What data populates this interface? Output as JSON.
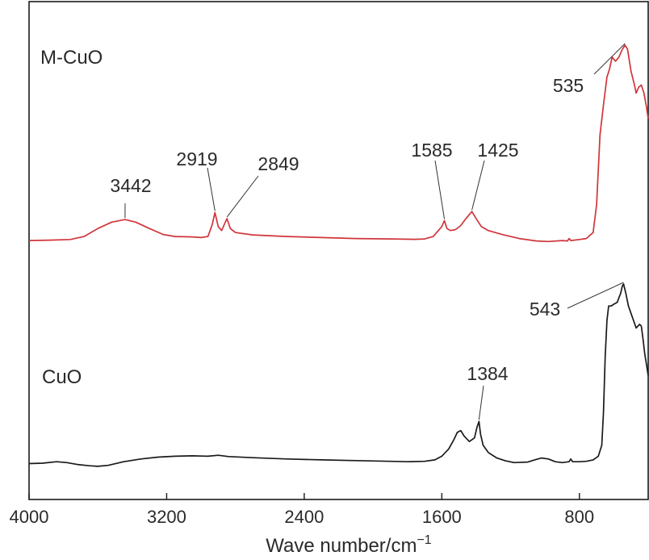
{
  "chart_data": {
    "type": "line",
    "title": "",
    "xlabel": "Wave number/cm",
    "xlabel_sup": "−1",
    "ylabel": "",
    "xlim": [
      4000,
      400
    ],
    "x_reversed": true,
    "x_ticks": [
      4000,
      3200,
      2400,
      1600,
      800
    ],
    "x_tick_labels": [
      "4000",
      "3200",
      "2400",
      "1600",
      "800"
    ],
    "y_ticks": [],
    "grid": false,
    "legend": "none",
    "colors": {
      "M-CuO": "#d0353a",
      "CuO": "#1a1a1a",
      "axis": "#1a1a1a"
    },
    "series": [
      {
        "name": "M-CuO",
        "label_position": "top-left",
        "points": [
          [
            4000,
            0.02
          ],
          [
            3880,
            0.022
          ],
          [
            3760,
            0.025
          ],
          [
            3680,
            0.04
          ],
          [
            3600,
            0.08
          ],
          [
            3520,
            0.112
          ],
          [
            3442,
            0.125
          ],
          [
            3380,
            0.112
          ],
          [
            3300,
            0.08
          ],
          [
            3220,
            0.05
          ],
          [
            3150,
            0.04
          ],
          [
            3050,
            0.038
          ],
          [
            3000,
            0.035
          ],
          [
            2960,
            0.04
          ],
          [
            2935,
            0.1
          ],
          [
            2919,
            0.16
          ],
          [
            2900,
            0.09
          ],
          [
            2880,
            0.07
          ],
          [
            2865,
            0.1
          ],
          [
            2849,
            0.13
          ],
          [
            2830,
            0.08
          ],
          [
            2800,
            0.06
          ],
          [
            2700,
            0.048
          ],
          [
            2500,
            0.04
          ],
          [
            2300,
            0.035
          ],
          [
            2100,
            0.03
          ],
          [
            1900,
            0.028
          ],
          [
            1760,
            0.026
          ],
          [
            1700,
            0.028
          ],
          [
            1650,
            0.04
          ],
          [
            1620,
            0.07
          ],
          [
            1600,
            0.09
          ],
          [
            1585,
            0.12
          ],
          [
            1570,
            0.08
          ],
          [
            1550,
            0.07
          ],
          [
            1520,
            0.075
          ],
          [
            1490,
            0.095
          ],
          [
            1460,
            0.13
          ],
          [
            1440,
            0.15
          ],
          [
            1425,
            0.165
          ],
          [
            1400,
            0.13
          ],
          [
            1370,
            0.09
          ],
          [
            1330,
            0.07
          ],
          [
            1250,
            0.05
          ],
          [
            1150,
            0.03
          ],
          [
            1050,
            0.018
          ],
          [
            980,
            0.015
          ],
          [
            900,
            0.02
          ],
          [
            870,
            0.018
          ],
          [
            860,
            0.03
          ],
          [
            850,
            0.02
          ],
          [
            800,
            0.025
          ],
          [
            760,
            0.03
          ],
          [
            720,
            0.06
          ],
          [
            700,
            0.2
          ],
          [
            680,
            0.55
          ],
          [
            660,
            0.7
          ],
          [
            640,
            0.84
          ],
          [
            625,
            0.88
          ],
          [
            610,
            0.94
          ],
          [
            590,
            0.92
          ],
          [
            570,
            0.94
          ],
          [
            553,
            0.975
          ],
          [
            535,
            1.0
          ],
          [
            520,
            0.98
          ],
          [
            500,
            0.87
          ],
          [
            480,
            0.8
          ],
          [
            470,
            0.76
          ],
          [
            455,
            0.79
          ],
          [
            440,
            0.8
          ],
          [
            425,
            0.76
          ],
          [
            410,
            0.69
          ],
          [
            400,
            0.63
          ]
        ],
        "peaks": [
          {
            "x": 3442,
            "label": "3442"
          },
          {
            "x": 2919,
            "label": "2919"
          },
          {
            "x": 2849,
            "label": "2849"
          },
          {
            "x": 1585,
            "label": "1585"
          },
          {
            "x": 1425,
            "label": "1425"
          },
          {
            "x": 535,
            "label": "535"
          }
        ]
      },
      {
        "name": "CuO",
        "label_position": "left",
        "points": [
          [
            4000,
            0.02
          ],
          [
            3920,
            0.022
          ],
          [
            3840,
            0.03
          ],
          [
            3780,
            0.025
          ],
          [
            3720,
            0.015
          ],
          [
            3650,
            0.008
          ],
          [
            3600,
            0.005
          ],
          [
            3540,
            0.01
          ],
          [
            3450,
            0.03
          ],
          [
            3350,
            0.045
          ],
          [
            3250,
            0.055
          ],
          [
            3150,
            0.06
          ],
          [
            3050,
            0.062
          ],
          [
            2960,
            0.06
          ],
          [
            2900,
            0.065
          ],
          [
            2840,
            0.058
          ],
          [
            2700,
            0.052
          ],
          [
            2500,
            0.045
          ],
          [
            2300,
            0.04
          ],
          [
            2100,
            0.036
          ],
          [
            1900,
            0.032
          ],
          [
            1800,
            0.03
          ],
          [
            1700,
            0.032
          ],
          [
            1640,
            0.04
          ],
          [
            1600,
            0.06
          ],
          [
            1560,
            0.1
          ],
          [
            1530,
            0.15
          ],
          [
            1510,
            0.19
          ],
          [
            1490,
            0.2
          ],
          [
            1470,
            0.17
          ],
          [
            1440,
            0.14
          ],
          [
            1410,
            0.16
          ],
          [
            1395,
            0.22
          ],
          [
            1384,
            0.25
          ],
          [
            1375,
            0.18
          ],
          [
            1360,
            0.12
          ],
          [
            1330,
            0.08
          ],
          [
            1280,
            0.05
          ],
          [
            1230,
            0.035
          ],
          [
            1180,
            0.025
          ],
          [
            1100,
            0.028
          ],
          [
            1060,
            0.04
          ],
          [
            1020,
            0.05
          ],
          [
            980,
            0.045
          ],
          [
            940,
            0.03
          ],
          [
            900,
            0.025
          ],
          [
            860,
            0.03
          ],
          [
            850,
            0.045
          ],
          [
            840,
            0.03
          ],
          [
            800,
            0.03
          ],
          [
            760,
            0.032
          ],
          [
            720,
            0.04
          ],
          [
            690,
            0.06
          ],
          [
            670,
            0.12
          ],
          [
            660,
            0.3
          ],
          [
            650,
            0.6
          ],
          [
            640,
            0.8
          ],
          [
            630,
            0.88
          ],
          [
            615,
            0.88
          ],
          [
            600,
            0.89
          ],
          [
            580,
            0.9
          ],
          [
            560,
            0.95
          ],
          [
            550,
            0.99
          ],
          [
            543,
            1.0
          ],
          [
            530,
            0.95
          ],
          [
            515,
            0.88
          ],
          [
            500,
            0.84
          ],
          [
            485,
            0.8
          ],
          [
            470,
            0.76
          ],
          [
            460,
            0.77
          ],
          [
            450,
            0.78
          ],
          [
            440,
            0.77
          ],
          [
            430,
            0.7
          ],
          [
            420,
            0.62
          ],
          [
            410,
            0.56
          ],
          [
            400,
            0.5
          ]
        ],
        "peaks": [
          {
            "x": 1384,
            "label": "1384"
          },
          {
            "x": 543,
            "label": "543"
          }
        ]
      }
    ]
  }
}
